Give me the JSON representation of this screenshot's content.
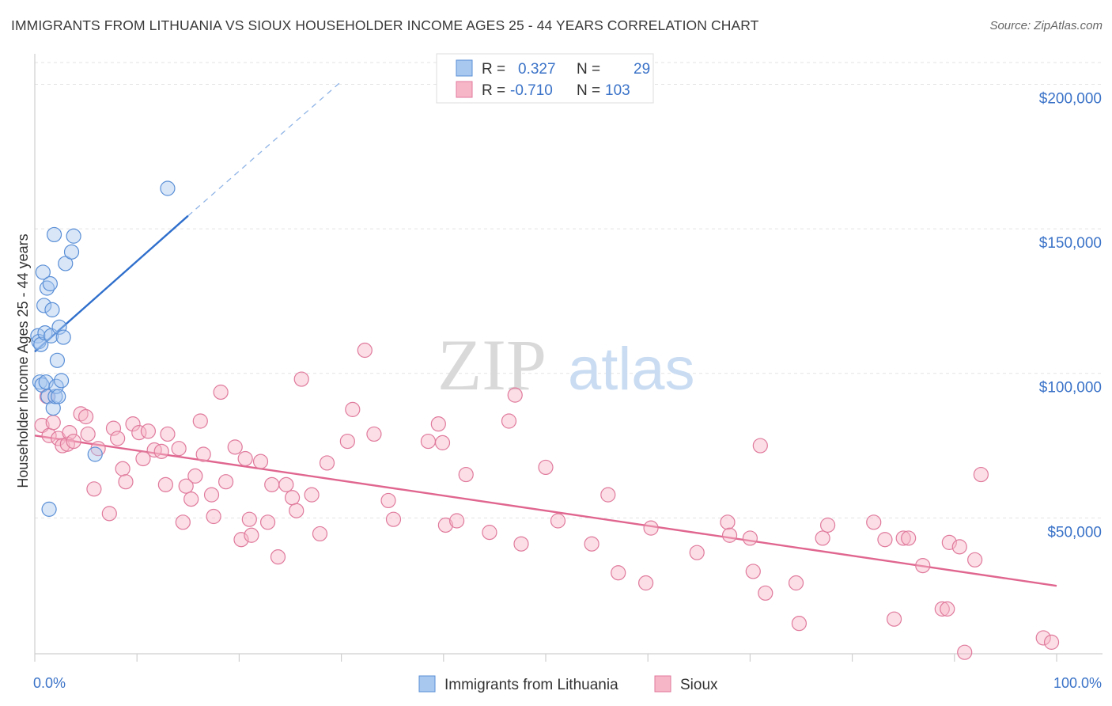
{
  "header": {
    "title": "IMMIGRANTS FROM LITHUANIA VS SIOUX HOUSEHOLDER INCOME AGES 25 - 44 YEARS CORRELATION CHART",
    "source": "Source: ZipAtlas.com"
  },
  "watermark": {
    "zip": "ZIP",
    "atlas": "atlas"
  },
  "legend_top": [
    {
      "r_label": "R =",
      "r_value": "0.327",
      "n_label": "N =",
      "n_value": "29",
      "color": "#a8c8f0"
    },
    {
      "r_label": "R =",
      "r_value": "-0.710",
      "n_label": "N =",
      "n_value": "103",
      "color": "#f7b6c8"
    }
  ],
  "chart_data": {
    "type": "scatter",
    "title": "IMMIGRANTS FROM LITHUANIA VS SIOUX HOUSEHOLDER INCOME AGES 25 - 44 YEARS CORRELATION CHART",
    "xlabel": "",
    "ylabel": "Householder Income Ages 25 - 44 years",
    "xlim": [
      0,
      100
    ],
    "ylim": [
      3000,
      210000
    ],
    "x_tick_labels": [
      "0.0%",
      "100.0%"
    ],
    "y_ticks": [
      50000,
      100000,
      150000,
      200000
    ],
    "y_tick_labels": [
      "$50,000",
      "$100,000",
      "$150,000",
      "$200,000"
    ],
    "grid": true,
    "legend_position": "bottom",
    "series": [
      {
        "name": "Immigrants from Lithuania",
        "color": "#a8c8f0",
        "stroke": "#5a8fd6",
        "trend": {
          "x": [
            0,
            15
          ],
          "y": [
            107500,
            154500
          ],
          "extended_to": [
            30,
            201000
          ]
        },
        "points": [
          [
            0.3,
            113000
          ],
          [
            0.4,
            111000
          ],
          [
            0.5,
            97000
          ],
          [
            0.6,
            110000
          ],
          [
            0.7,
            96000
          ],
          [
            0.8,
            135000
          ],
          [
            0.9,
            123500
          ],
          [
            1.0,
            114000
          ],
          [
            1.1,
            97000
          ],
          [
            1.2,
            129500
          ],
          [
            1.3,
            92000
          ],
          [
            1.4,
            53000
          ],
          [
            1.5,
            131000
          ],
          [
            1.6,
            113000
          ],
          [
            1.7,
            122000
          ],
          [
            1.8,
            88000
          ],
          [
            1.9,
            148000
          ],
          [
            2.0,
            92000
          ],
          [
            2.1,
            95500
          ],
          [
            2.2,
            104500
          ],
          [
            2.3,
            92000
          ],
          [
            2.4,
            116000
          ],
          [
            2.6,
            97500
          ],
          [
            2.8,
            112500
          ],
          [
            3.0,
            138000
          ],
          [
            3.6,
            142000
          ],
          [
            3.8,
            147500
          ],
          [
            5.9,
            72000
          ],
          [
            13.0,
            164000
          ]
        ]
      },
      {
        "name": "Sioux",
        "color": "#f7b6c8",
        "stroke": "#e07a9c",
        "trend": {
          "x": [
            0,
            100
          ],
          "y": [
            78500,
            26500
          ]
        },
        "points": [
          [
            0.7,
            82000
          ],
          [
            1.2,
            92000
          ],
          [
            1.4,
            78500
          ],
          [
            1.8,
            83000
          ],
          [
            2.3,
            77500
          ],
          [
            2.7,
            75000
          ],
          [
            3.2,
            75500
          ],
          [
            3.4,
            79500
          ],
          [
            3.8,
            76500
          ],
          [
            4.5,
            86000
          ],
          [
            5.0,
            85000
          ],
          [
            5.2,
            79000
          ],
          [
            5.8,
            60000
          ],
          [
            6.2,
            74000
          ],
          [
            7.3,
            51500
          ],
          [
            7.7,
            81000
          ],
          [
            8.1,
            77500
          ],
          [
            8.6,
            67000
          ],
          [
            8.9,
            62500
          ],
          [
            9.6,
            82500
          ],
          [
            10.2,
            79500
          ],
          [
            10.6,
            70500
          ],
          [
            11.1,
            80000
          ],
          [
            11.7,
            73500
          ],
          [
            12.4,
            73000
          ],
          [
            12.8,
            61500
          ],
          [
            13.0,
            79000
          ],
          [
            14.1,
            74000
          ],
          [
            14.5,
            48500
          ],
          [
            14.8,
            61000
          ],
          [
            15.3,
            56500
          ],
          [
            15.7,
            64500
          ],
          [
            16.2,
            83500
          ],
          [
            16.5,
            72000
          ],
          [
            17.3,
            58000
          ],
          [
            17.5,
            50500
          ],
          [
            18.2,
            93500
          ],
          [
            18.7,
            62500
          ],
          [
            19.6,
            74500
          ],
          [
            20.2,
            42500
          ],
          [
            20.6,
            70500
          ],
          [
            21.0,
            49500
          ],
          [
            21.2,
            44000
          ],
          [
            22.1,
            69500
          ],
          [
            22.8,
            48500
          ],
          [
            23.2,
            61500
          ],
          [
            23.8,
            36500
          ],
          [
            24.6,
            61500
          ],
          [
            25.2,
            57000
          ],
          [
            25.6,
            52500
          ],
          [
            26.1,
            98000
          ],
          [
            27.1,
            58000
          ],
          [
            27.9,
            44500
          ],
          [
            28.6,
            69000
          ],
          [
            30.6,
            76500
          ],
          [
            31.1,
            87500
          ],
          [
            32.3,
            108000
          ],
          [
            33.2,
            79000
          ],
          [
            34.6,
            56000
          ],
          [
            35.1,
            49500
          ],
          [
            38.5,
            76500
          ],
          [
            39.5,
            82500
          ],
          [
            39.9,
            76000
          ],
          [
            40.2,
            47500
          ],
          [
            41.3,
            49000
          ],
          [
            42.2,
            65000
          ],
          [
            44.5,
            45000
          ],
          [
            46.4,
            83500
          ],
          [
            47.0,
            92500
          ],
          [
            47.6,
            41000
          ],
          [
            50.0,
            67500
          ],
          [
            51.2,
            49000
          ],
          [
            54.5,
            41000
          ],
          [
            56.1,
            58000
          ],
          [
            57.1,
            31000
          ],
          [
            59.8,
            27500
          ],
          [
            60.3,
            46500
          ],
          [
            64.8,
            38000
          ],
          [
            67.8,
            48500
          ],
          [
            68.0,
            44000
          ],
          [
            70.0,
            43000
          ],
          [
            70.3,
            31500
          ],
          [
            71.0,
            75000
          ],
          [
            71.5,
            24000
          ],
          [
            74.5,
            27500
          ],
          [
            74.8,
            13500
          ],
          [
            77.1,
            43000
          ],
          [
            77.6,
            47500
          ],
          [
            82.1,
            48500
          ],
          [
            83.2,
            42500
          ],
          [
            84.1,
            15000
          ],
          [
            85.0,
            43000
          ],
          [
            85.5,
            43000
          ],
          [
            86.9,
            33500
          ],
          [
            88.8,
            18500
          ],
          [
            89.3,
            18500
          ],
          [
            89.5,
            41500
          ],
          [
            90.5,
            40000
          ],
          [
            92.0,
            35500
          ],
          [
            92.6,
            65000
          ],
          [
            91.0,
            3500
          ],
          [
            98.7,
            8500
          ],
          [
            99.5,
            7000
          ]
        ]
      }
    ]
  },
  "legend_bottom": [
    {
      "label": "Immigrants from Lithuania",
      "color": "#a8c8f0",
      "stroke": "#5a8fd6"
    },
    {
      "label": "Sioux",
      "color": "#f7b6c8",
      "stroke": "#e07a9c"
    }
  ]
}
